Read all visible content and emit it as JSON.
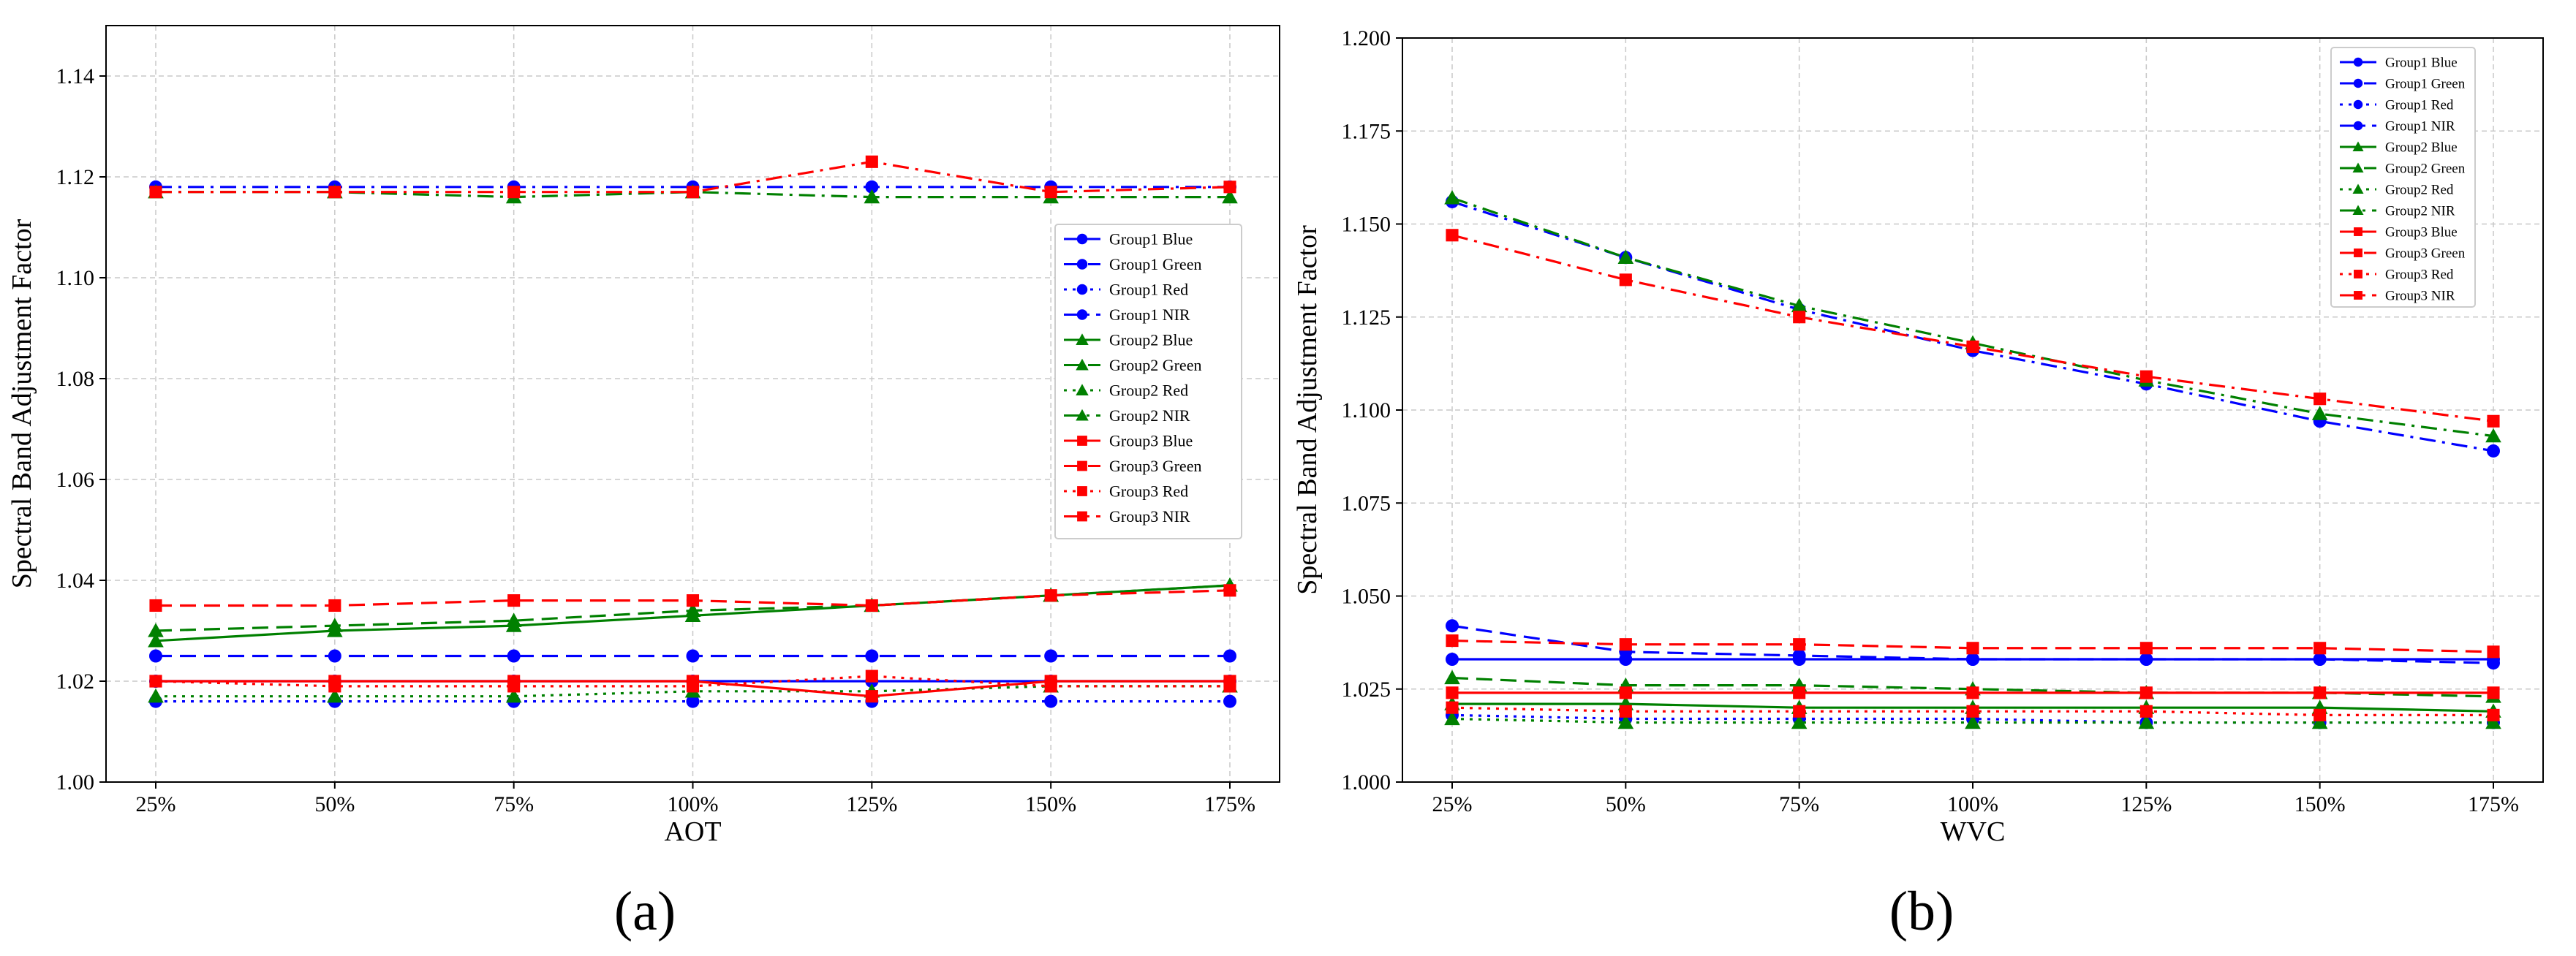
{
  "figure": {
    "panels": [
      "(a)",
      "(b)"
    ]
  },
  "chart_data": [
    {
      "type": "line",
      "panel_label": "(a)",
      "title": "",
      "xlabel": "AOT",
      "ylabel": "Spectral Band Adjustment Factor",
      "categories": [
        "25%",
        "50%",
        "75%",
        "100%",
        "125%",
        "150%",
        "175%"
      ],
      "ylim": [
        1.0,
        1.15
      ],
      "yticks": [
        1.0,
        1.02,
        1.04,
        1.06,
        1.08,
        1.1,
        1.12,
        1.14
      ],
      "ytick_labels": [
        "1.00",
        "1.02",
        "1.04",
        "1.06",
        "1.08",
        "1.10",
        "1.12",
        "1.14"
      ],
      "grid": true,
      "legend_position": "right-middle",
      "series": [
        {
          "name": "Group1 Blue",
          "color": "#0000ff",
          "marker": "circle",
          "linestyle": "solid",
          "values": [
            1.02,
            1.02,
            1.02,
            1.02,
            1.02,
            1.02,
            1.02
          ]
        },
        {
          "name": "Group1 Green",
          "color": "#0000ff",
          "marker": "circle",
          "linestyle": "dashed",
          "values": [
            1.025,
            1.025,
            1.025,
            1.025,
            1.025,
            1.025,
            1.025
          ]
        },
        {
          "name": "Group1 Red",
          "color": "#0000ff",
          "marker": "circle",
          "linestyle": "dotted",
          "values": [
            1.016,
            1.016,
            1.016,
            1.016,
            1.016,
            1.016,
            1.016
          ]
        },
        {
          "name": "Group1 NIR",
          "color": "#0000ff",
          "marker": "circle",
          "linestyle": "dashdot",
          "values": [
            1.118,
            1.118,
            1.118,
            1.118,
            1.118,
            1.118,
            1.118
          ]
        },
        {
          "name": "Group2 Blue",
          "color": "#008000",
          "marker": "triangle",
          "linestyle": "solid",
          "values": [
            1.028,
            1.03,
            1.031,
            1.033,
            1.035,
            1.037,
            1.039
          ]
        },
        {
          "name": "Group2 Green",
          "color": "#008000",
          "marker": "triangle",
          "linestyle": "dashed",
          "values": [
            1.03,
            1.031,
            1.032,
            1.034,
            1.035,
            1.037,
            1.039
          ]
        },
        {
          "name": "Group2 Red",
          "color": "#008000",
          "marker": "triangle",
          "linestyle": "dotted",
          "values": [
            1.017,
            1.017,
            1.017,
            1.018,
            1.018,
            1.019,
            1.019
          ]
        },
        {
          "name": "Group2 NIR",
          "color": "#008000",
          "marker": "triangle",
          "linestyle": "dashdot",
          "values": [
            1.117,
            1.117,
            1.116,
            1.117,
            1.116,
            1.116,
            1.116
          ]
        },
        {
          "name": "Group3 Blue",
          "color": "#ff0000",
          "marker": "square",
          "linestyle": "solid",
          "values": [
            1.02,
            1.02,
            1.02,
            1.02,
            1.017,
            1.02,
            1.02
          ]
        },
        {
          "name": "Group3 Green",
          "color": "#ff0000",
          "marker": "square",
          "linestyle": "dashed",
          "values": [
            1.035,
            1.035,
            1.036,
            1.036,
            1.035,
            1.037,
            1.038
          ]
        },
        {
          "name": "Group3 Red",
          "color": "#ff0000",
          "marker": "square",
          "linestyle": "dotted",
          "values": [
            1.02,
            1.019,
            1.019,
            1.019,
            1.021,
            1.019,
            1.019
          ]
        },
        {
          "name": "Group3 NIR",
          "color": "#ff0000",
          "marker": "square",
          "linestyle": "dashdot",
          "values": [
            1.117,
            1.117,
            1.117,
            1.117,
            1.123,
            1.117,
            1.118
          ]
        }
      ]
    },
    {
      "type": "line",
      "panel_label": "(b)",
      "title": "",
      "xlabel": "WVC",
      "ylabel": "Spectral Band Adjustment Factor",
      "categories": [
        "25%",
        "50%",
        "75%",
        "100%",
        "125%",
        "150%",
        "175%"
      ],
      "ylim": [
        1.0,
        1.2
      ],
      "yticks": [
        1.0,
        1.025,
        1.05,
        1.075,
        1.1,
        1.125,
        1.15,
        1.175,
        1.2
      ],
      "ytick_labels": [
        "1.000",
        "1.025",
        "1.050",
        "1.075",
        "1.100",
        "1.125",
        "1.150",
        "1.175",
        "1.200"
      ],
      "grid": true,
      "legend_position": "top-right",
      "series": [
        {
          "name": "Group1 Blue",
          "color": "#0000ff",
          "marker": "circle",
          "linestyle": "solid",
          "values": [
            1.033,
            1.033,
            1.033,
            1.033,
            1.033,
            1.033,
            1.033
          ]
        },
        {
          "name": "Group1 Green",
          "color": "#0000ff",
          "marker": "circle",
          "linestyle": "dashed",
          "values": [
            1.042,
            1.035,
            1.034,
            1.033,
            1.033,
            1.033,
            1.032
          ]
        },
        {
          "name": "Group1 Red",
          "color": "#0000ff",
          "marker": "circle",
          "linestyle": "dotted",
          "values": [
            1.018,
            1.017,
            1.017,
            1.017,
            1.016,
            1.016,
            1.016
          ]
        },
        {
          "name": "Group1 NIR",
          "color": "#0000ff",
          "marker": "circle",
          "linestyle": "dashdot",
          "values": [
            1.156,
            1.141,
            1.127,
            1.116,
            1.107,
            1.097,
            1.089
          ]
        },
        {
          "name": "Group2 Blue",
          "color": "#008000",
          "marker": "triangle",
          "linestyle": "solid",
          "values": [
            1.021,
            1.021,
            1.02,
            1.02,
            1.02,
            1.02,
            1.019
          ]
        },
        {
          "name": "Group2 Green",
          "color": "#008000",
          "marker": "triangle",
          "linestyle": "dashed",
          "values": [
            1.028,
            1.026,
            1.026,
            1.025,
            1.024,
            1.024,
            1.023
          ]
        },
        {
          "name": "Group2 Red",
          "color": "#008000",
          "marker": "triangle",
          "linestyle": "dotted",
          "values": [
            1.017,
            1.016,
            1.016,
            1.016,
            1.016,
            1.016,
            1.016
          ]
        },
        {
          "name": "Group2 NIR",
          "color": "#008000",
          "marker": "triangle",
          "linestyle": "dashdot",
          "values": [
            1.157,
            1.141,
            1.128,
            1.118,
            1.108,
            1.099,
            1.093
          ]
        },
        {
          "name": "Group3 Blue",
          "color": "#ff0000",
          "marker": "square",
          "linestyle": "solid",
          "values": [
            1.024,
            1.024,
            1.024,
            1.024,
            1.024,
            1.024,
            1.024
          ]
        },
        {
          "name": "Group3 Green",
          "color": "#ff0000",
          "marker": "square",
          "linestyle": "dashed",
          "values": [
            1.038,
            1.037,
            1.037,
            1.036,
            1.036,
            1.036,
            1.035
          ]
        },
        {
          "name": "Group3 Red",
          "color": "#ff0000",
          "marker": "square",
          "linestyle": "dotted",
          "values": [
            1.02,
            1.019,
            1.019,
            1.019,
            1.019,
            1.018,
            1.018
          ]
        },
        {
          "name": "Group3 NIR",
          "color": "#ff0000",
          "marker": "square",
          "linestyle": "dashdot",
          "values": [
            1.147,
            1.135,
            1.125,
            1.117,
            1.109,
            1.103,
            1.097
          ]
        }
      ]
    }
  ]
}
